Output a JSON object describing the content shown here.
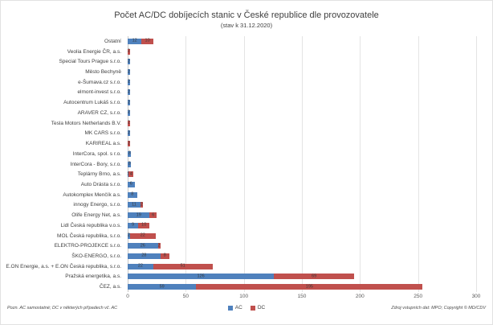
{
  "chart_data": {
    "type": "bar",
    "orientation": "horizontal",
    "stacked": true,
    "title": "Počet AC/DC dobíjecích stanic v České republice dle provozovatele",
    "subtitle": "(stav k 31.12.2020)",
    "categories": [
      "Ostatní",
      "Veolia Energie ČR, a.s.",
      "Special Tours Prague s.r.o.",
      "Město Bechyně",
      "e-Šumava.cz s.r.o.",
      "elmont-invest s.r.o.",
      "Autocentrum Lukáš s.r.o.",
      "ARAVER CZ, s.r.o.",
      "Tesla Motors Netherlands B.V.",
      "MK CARS s.r.o.",
      "KARIREAL a.s.",
      "InterCora, spol. s r.o.",
      "InterCora - Bory, s.r.o.",
      "Teplárny Brno, a.s.",
      "Auto Drásta s.r.o.",
      "Autokomplex Menčík a.s.",
      "innogy Energo, s.r.o.",
      "Olife Energy Net, a.s.",
      "Lidl Česká republika v.o.s.",
      "MOL Česká republika, s.r.o.",
      "ELEKTRO-PROJEKCE s.r.o.",
      "ŠKO-ENERGO, s.r.o.",
      "E.ON Energie, a.s. + E.ON Česká republika, s.r.o.",
      "Pražská energetika, a.s.",
      "ČEZ, a.s."
    ],
    "series": [
      {
        "name": "AC",
        "color": "#4f81bd",
        "values": [
          12,
          0,
          2,
          2,
          2,
          2,
          2,
          2,
          0,
          2,
          0,
          3,
          3,
          1,
          6,
          8,
          11,
          19,
          9,
          2,
          26,
          28,
          22,
          126,
          59
        ]
      },
      {
        "name": "DC",
        "color": "#c0504d",
        "values": [
          10,
          2,
          0,
          0,
          0,
          0,
          0,
          0,
          2,
          0,
          2,
          0,
          0,
          4,
          0,
          0,
          2,
          6,
          10,
          22,
          2,
          8,
          51,
          69,
          195
        ]
      }
    ],
    "x_axis": {
      "min": 0,
      "max": 300,
      "ticks": [
        0,
        50,
        100,
        150,
        200,
        250,
        300
      ]
    },
    "legend": {
      "position": "bottom",
      "entries": [
        "AC",
        "DC"
      ]
    },
    "grid": true
  },
  "footnotes": {
    "left": "Pozn. AC samostatné; DC v některých případech vč. AC",
    "right": "Zdroj vstupních dat: MPO; Copyright © MD/CDV"
  }
}
